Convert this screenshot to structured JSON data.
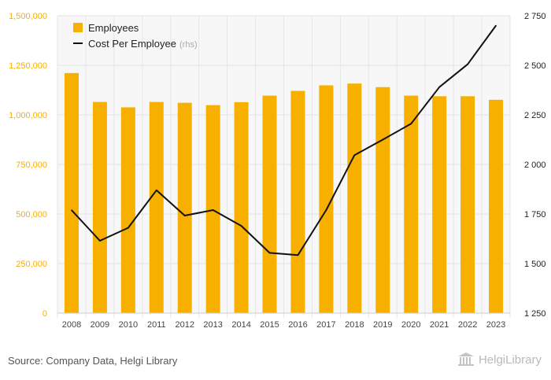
{
  "chart_data": {
    "type": "bar",
    "categories": [
      "2008",
      "2009",
      "2010",
      "2011",
      "2012",
      "2013",
      "2014",
      "2015",
      "2016",
      "2017",
      "2018",
      "2019",
      "2020",
      "2021",
      "2022",
      "2023"
    ],
    "series": [
      {
        "name": "Employees",
        "type": "bar",
        "axis": "left",
        "color": "#f7b000",
        "values": [
          1211000,
          1065000,
          1038000,
          1065000,
          1061000,
          1049000,
          1064000,
          1097000,
          1121000,
          1149000,
          1158000,
          1140000,
          1097000,
          1094000,
          1094000,
          1076000
        ]
      },
      {
        "name": "Cost Per Employee",
        "legend_suffix": "(rhs)",
        "type": "line",
        "axis": "right",
        "color": "#111111",
        "values": [
          1769,
          1615,
          1680,
          1870,
          1742,
          1770,
          1690,
          1554,
          1543,
          1770,
          2047,
          2125,
          2205,
          2390,
          2505,
          2700
        ]
      }
    ],
    "y_left": {
      "ylim": [
        0,
        1500000
      ],
      "ticks": [
        0,
        250000,
        500000,
        750000,
        1000000,
        1250000,
        1500000
      ],
      "tick_labels": [
        "0",
        "250,000",
        "500,000",
        "750,000",
        "1,000,000",
        "1,250,000",
        "1,500,000"
      ],
      "color": "#f7b000"
    },
    "y_right": {
      "ylim": [
        1250,
        2750
      ],
      "ticks": [
        1250,
        1500,
        1750,
        2000,
        2250,
        2500,
        2750
      ],
      "tick_labels": [
        "1 250",
        "1 500",
        "1 750",
        "2 000",
        "2 250",
        "2 500",
        "2 750"
      ],
      "color": "#222222"
    },
    "grid": true,
    "legend_position": "top-left"
  },
  "footer": {
    "source": "Source: Company Data, Helgi Library",
    "logo_text": "HelgiLibrary"
  }
}
